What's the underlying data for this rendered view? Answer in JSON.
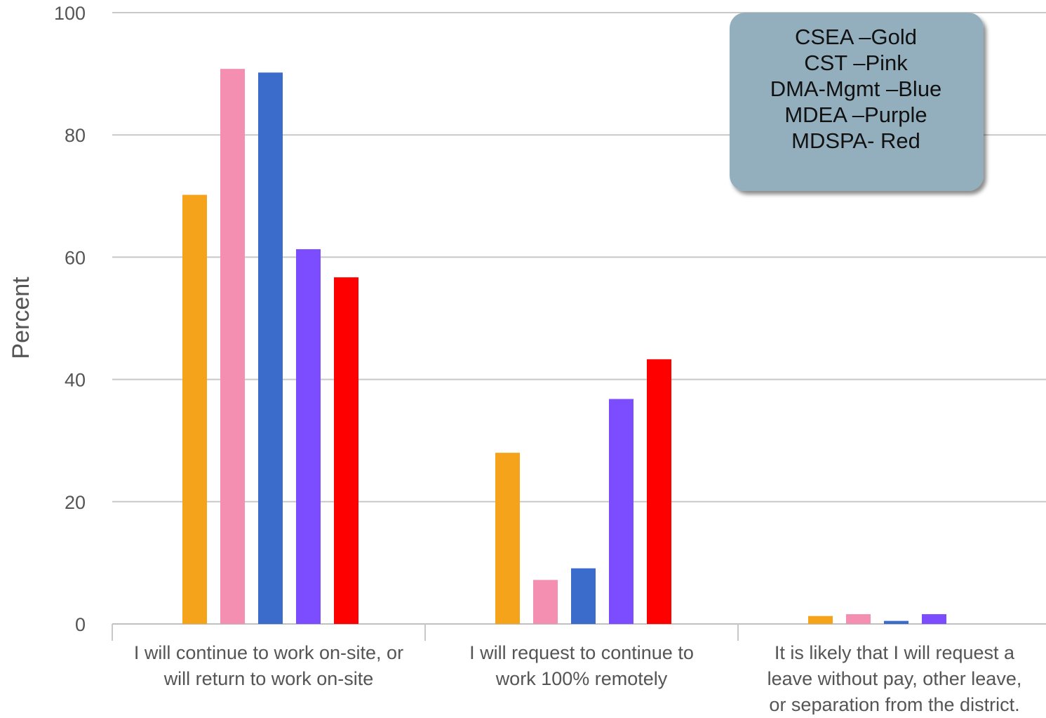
{
  "chart_data": {
    "type": "bar",
    "title": "",
    "xlabel": "",
    "ylabel": "Percent",
    "ylim": [
      0,
      100
    ],
    "yticks": [
      0,
      20,
      40,
      60,
      80,
      100
    ],
    "grid": true,
    "legend_position": "top-right",
    "categories": [
      [
        "I will continue to work on-site, or",
        "will return to work on-site"
      ],
      [
        "I will request to continue to",
        "work 100% remotely"
      ],
      [
        "It is likely that I will request a",
        "leave without pay, other leave,",
        "or separation from the district."
      ]
    ],
    "series": [
      {
        "name": "CSEA",
        "color": "#F5A31A",
        "values": [
          70.2,
          28.0,
          1.3
        ]
      },
      {
        "name": "CST",
        "color": "#F48FB1",
        "values": [
          90.8,
          7.2,
          1.6
        ]
      },
      {
        "name": "DMA-Mgmt",
        "color": "#3B6CCC",
        "values": [
          90.2,
          9.1,
          0.5
        ]
      },
      {
        "name": "MDEA",
        "color": "#7B4DFF",
        "values": [
          61.3,
          36.8,
          1.6
        ]
      },
      {
        "name": "MDSPA",
        "color": "#FF0000",
        "values": [
          56.7,
          43.3,
          0.0
        ]
      }
    ],
    "legend_lines": [
      "CSEA –Gold",
      "CST –Pink",
      "DMA-Mgmt –Blue",
      "MDEA –Purple",
      "MDSPA- Red"
    ],
    "legend_box_color": "#93AFBE"
  }
}
